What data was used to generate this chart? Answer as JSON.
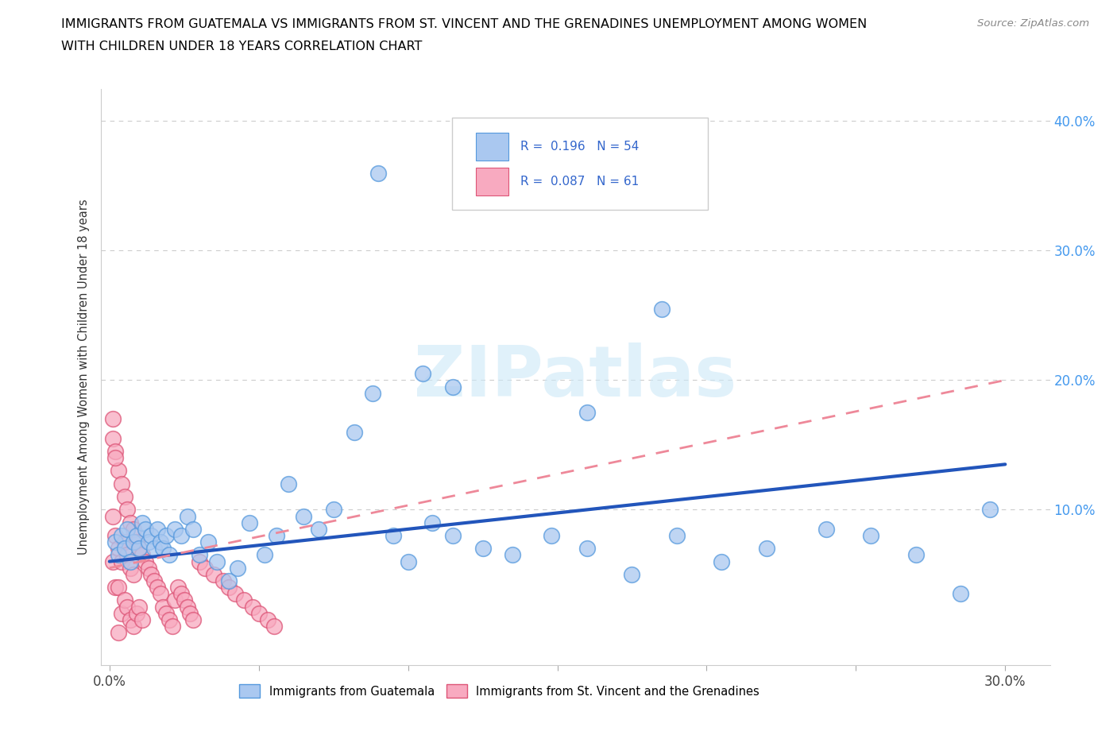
{
  "title_line1": "IMMIGRANTS FROM GUATEMALA VS IMMIGRANTS FROM ST. VINCENT AND THE GRENADINES UNEMPLOYMENT AMONG WOMEN",
  "title_line2": "WITH CHILDREN UNDER 18 YEARS CORRELATION CHART",
  "source": "Source: ZipAtlas.com",
  "ylabel": "Unemployment Among Women with Children Under 18 years",
  "color_blue": "#aac8f0",
  "color_blue_edge": "#5599dd",
  "color_pink": "#f8aac0",
  "color_pink_edge": "#dd5577",
  "color_line_blue": "#2255bb",
  "color_line_pink": "#ee8899",
  "legend_r_blue": "0.196",
  "legend_n_blue": "54",
  "legend_r_pink": "0.087",
  "legend_n_pink": "61",
  "guat_x": [
    0.002,
    0.003,
    0.004,
    0.005,
    0.006,
    0.007,
    0.008,
    0.009,
    0.01,
    0.011,
    0.012,
    0.013,
    0.014,
    0.015,
    0.016,
    0.017,
    0.018,
    0.019,
    0.02,
    0.022,
    0.024,
    0.026,
    0.028,
    0.03,
    0.033,
    0.036,
    0.04,
    0.043,
    0.047,
    0.052,
    0.056,
    0.06,
    0.065,
    0.07,
    0.075,
    0.082,
    0.088,
    0.095,
    0.1,
    0.108,
    0.115,
    0.125,
    0.135,
    0.148,
    0.16,
    0.175,
    0.19,
    0.205,
    0.22,
    0.24,
    0.255,
    0.27,
    0.285,
    0.295
  ],
  "guat_y": [
    0.075,
    0.065,
    0.08,
    0.07,
    0.085,
    0.06,
    0.075,
    0.08,
    0.07,
    0.09,
    0.085,
    0.075,
    0.08,
    0.07,
    0.085,
    0.075,
    0.07,
    0.08,
    0.065,
    0.085,
    0.08,
    0.095,
    0.085,
    0.065,
    0.075,
    0.06,
    0.045,
    0.055,
    0.09,
    0.065,
    0.08,
    0.12,
    0.095,
    0.085,
    0.1,
    0.16,
    0.19,
    0.08,
    0.06,
    0.09,
    0.08,
    0.07,
    0.065,
    0.08,
    0.07,
    0.05,
    0.08,
    0.06,
    0.07,
    0.085,
    0.08,
    0.065,
    0.035,
    0.1
  ],
  "svg_x": [
    0.001,
    0.001,
    0.001,
    0.001,
    0.002,
    0.002,
    0.002,
    0.003,
    0.003,
    0.003,
    0.003,
    0.004,
    0.004,
    0.004,
    0.005,
    0.005,
    0.005,
    0.006,
    0.006,
    0.006,
    0.007,
    0.007,
    0.007,
    0.008,
    0.008,
    0.008,
    0.009,
    0.009,
    0.01,
    0.01,
    0.011,
    0.011,
    0.012,
    0.013,
    0.014,
    0.015,
    0.016,
    0.017,
    0.018,
    0.019,
    0.02,
    0.021,
    0.022,
    0.023,
    0.024,
    0.025,
    0.026,
    0.027,
    0.028,
    0.03,
    0.032,
    0.035,
    0.038,
    0.04,
    0.042,
    0.045,
    0.048,
    0.05,
    0.053,
    0.055,
    0.002
  ],
  "svg_y": [
    0.17,
    0.095,
    0.155,
    0.06,
    0.145,
    0.08,
    0.04,
    0.13,
    0.07,
    0.04,
    0.005,
    0.12,
    0.06,
    0.02,
    0.11,
    0.075,
    0.03,
    0.1,
    0.065,
    0.025,
    0.09,
    0.055,
    0.015,
    0.085,
    0.05,
    0.01,
    0.075,
    0.02,
    0.07,
    0.025,
    0.065,
    0.015,
    0.06,
    0.055,
    0.05,
    0.045,
    0.04,
    0.035,
    0.025,
    0.02,
    0.015,
    0.01,
    0.03,
    0.04,
    0.035,
    0.03,
    0.025,
    0.02,
    0.015,
    0.06,
    0.055,
    0.05,
    0.045,
    0.04,
    0.035,
    0.03,
    0.025,
    0.02,
    0.015,
    0.01,
    0.14
  ],
  "blue_line_x": [
    0.0,
    0.3
  ],
  "blue_line_y": [
    0.06,
    0.135
  ],
  "pink_line_x": [
    0.0,
    0.3
  ],
  "pink_line_y": [
    0.055,
    0.2
  ],
  "xlim": [
    -0.003,
    0.315
  ],
  "ylim": [
    -0.02,
    0.425
  ],
  "ytick_vals": [
    0.0,
    0.1,
    0.2,
    0.3,
    0.4
  ],
  "ytick_labels_right": [
    "",
    "10.0%",
    "20.0%",
    "30.0%",
    "40.0%"
  ],
  "xtick_vals": [
    0.0,
    0.05,
    0.1,
    0.15,
    0.2,
    0.25,
    0.3
  ],
  "xtick_labels": [
    "0.0%",
    "",
    "",
    "",
    "",
    "",
    "30.0%"
  ]
}
